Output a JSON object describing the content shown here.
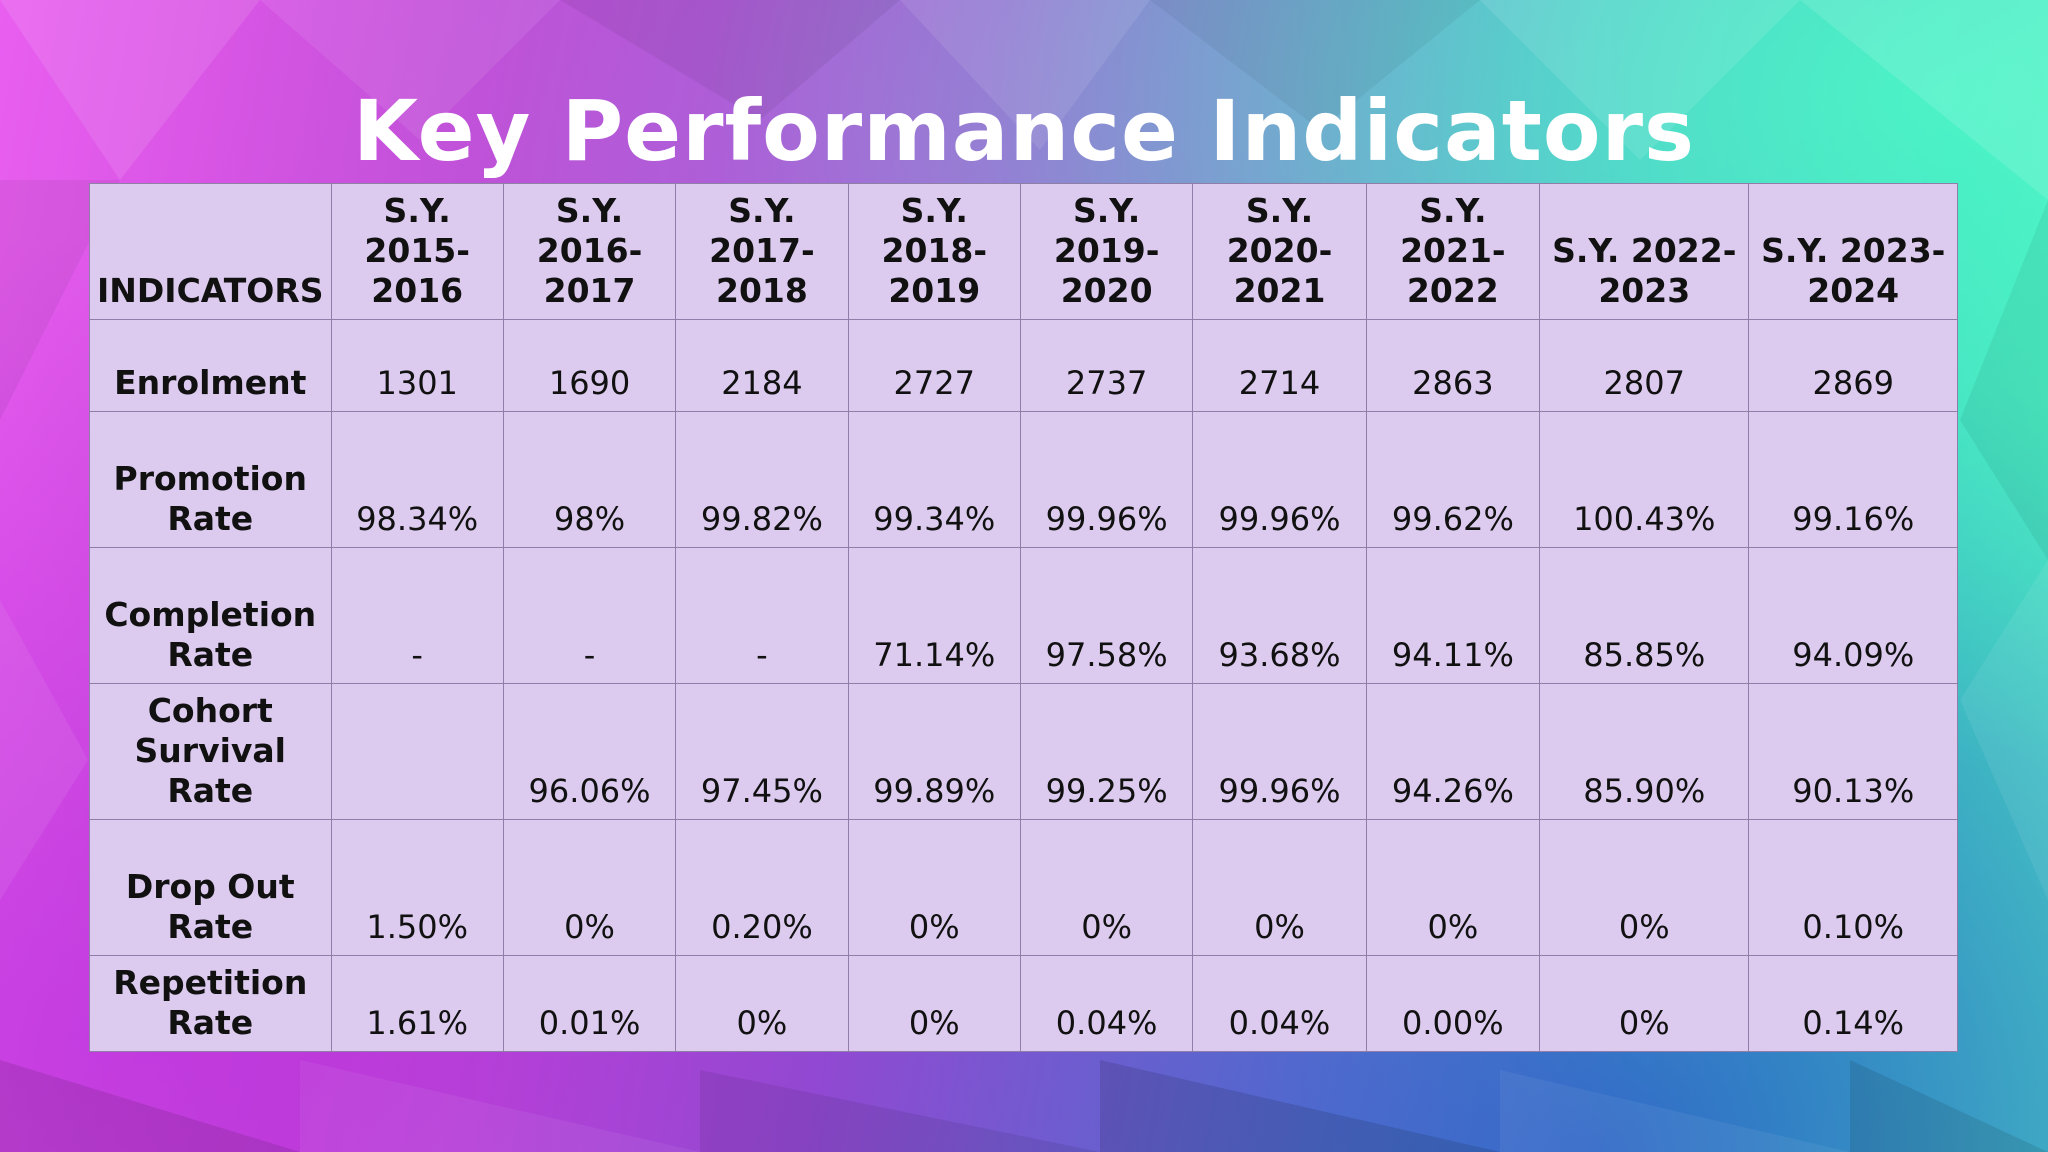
{
  "slide": {
    "title": "Key Performance Indicators"
  },
  "table": {
    "corner_label": "INDICATORS",
    "columns": [
      {
        "line1": "S.Y. 2015-",
        "line2": "2016"
      },
      {
        "line1": "S.Y. 2016-",
        "line2": "2017"
      },
      {
        "line1": "S.Y. 2017-",
        "line2": "2018"
      },
      {
        "line1": "S.Y. 2018-",
        "line2": "2019"
      },
      {
        "line1": "S.Y. 2019-",
        "line2": "2020"
      },
      {
        "line1": "S.Y. 2020-",
        "line2": "2021"
      },
      {
        "line1": "S.Y. 2021-",
        "line2": "2022"
      },
      {
        "line1": "S.Y. 2022-",
        "line2": "2023"
      },
      {
        "line1": "S.Y. 2023-",
        "line2": "2024"
      }
    ],
    "rows": [
      {
        "line1": "Enrolment",
        "line2": "",
        "values": [
          "1301",
          "1690",
          "2184",
          "2727",
          "2737",
          "2714",
          "2863",
          "2807",
          "2869"
        ]
      },
      {
        "line1": "Promotion",
        "line2": "Rate",
        "values": [
          "98.34%",
          "98%",
          "99.82%",
          "99.34%",
          "99.96%",
          "99.96%",
          "99.62%",
          "100.43%",
          "99.16%"
        ]
      },
      {
        "line1": "Completion",
        "line2": "Rate",
        "values": [
          "-",
          "-",
          "-",
          "71.14%",
          "97.58%",
          "93.68%",
          "94.11%",
          "85.85%",
          "94.09%"
        ]
      },
      {
        "line1": "Cohort",
        "line2": "Survival Rate",
        "values": [
          "",
          "96.06%",
          "97.45%",
          "99.89%",
          "99.25%",
          "99.96%",
          "94.26%",
          "85.90%",
          "90.13%"
        ]
      },
      {
        "line1": "Drop Out Rate",
        "line2": "",
        "values": [
          "1.50%",
          "0%",
          "0.20%",
          "0%",
          "0%",
          "0%",
          "0%",
          "0%",
          "0.10%"
        ]
      },
      {
        "line1": "Repetition",
        "line2": "Rate",
        "values": [
          "1.61%",
          "0.01%",
          "0%",
          "0%",
          "0.04%",
          "0.04%",
          "0.00%",
          "0%",
          "0.14%"
        ]
      }
    ]
  },
  "colors": {
    "table_fill": "#dccbef",
    "grid_line": "#8f7fa8",
    "title_text": "#ffffff",
    "cell_text": "#111111"
  }
}
